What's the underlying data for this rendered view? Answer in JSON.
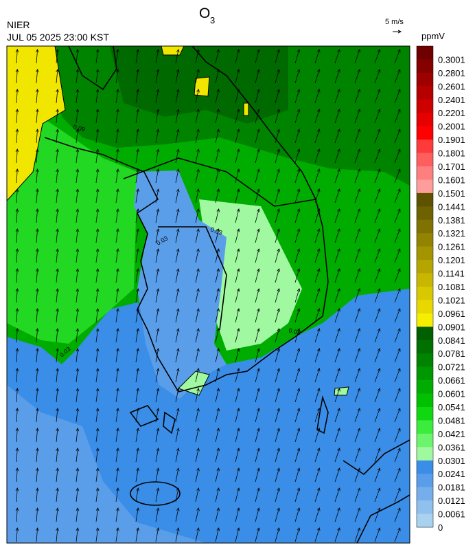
{
  "header": {
    "title": {
      "main": "O",
      "sub": "3"
    },
    "agency": "NIER",
    "timestamp": "JUL 05 2025 23:00 KST",
    "wind_scale": "5 m/s",
    "unit": "ppmV"
  },
  "contour_labels": [
    "0.09",
    "0.03",
    "0.03",
    "0.03",
    "0.03"
  ],
  "colorbar": {
    "labels": [
      0.3001,
      0.2801,
      0.2601,
      0.2401,
      0.2201,
      0.2001,
      0.1901,
      0.1801,
      0.1701,
      0.1601,
      0.1501,
      0.1441,
      0.1381,
      0.1321,
      0.1261,
      0.1201,
      0.1141,
      0.1081,
      0.1021,
      0.0961,
      0.0901,
      0.0841,
      0.0781,
      0.0721,
      0.0661,
      0.0601,
      0.0541,
      0.0481,
      0.0421,
      0.0361,
      0.0301,
      0.0241,
      0.0181,
      0.0121,
      0.0061,
      0
    ],
    "colors": [
      "#6e0000",
      "#860000",
      "#9e0000",
      "#b60000",
      "#ce0000",
      "#e60000",
      "#ff0000",
      "#ff3a3a",
      "#ff5e5e",
      "#ff7e7e",
      "#ff9c9c",
      "#5e5200",
      "#6e6200",
      "#807200",
      "#928300",
      "#a49400",
      "#b6a500",
      "#c8b600",
      "#d8c800",
      "#e8d800",
      "#f5ee00",
      "#005f00",
      "#007000",
      "#008400",
      "#009800",
      "#00ac00",
      "#00c000",
      "#10d810",
      "#3cec3c",
      "#6cf46c",
      "#a0f8a0",
      "#3a8ee8",
      "#5a9eea",
      "#76aeec",
      "#90c0ee",
      "#a8d2f0"
    ]
  }
}
